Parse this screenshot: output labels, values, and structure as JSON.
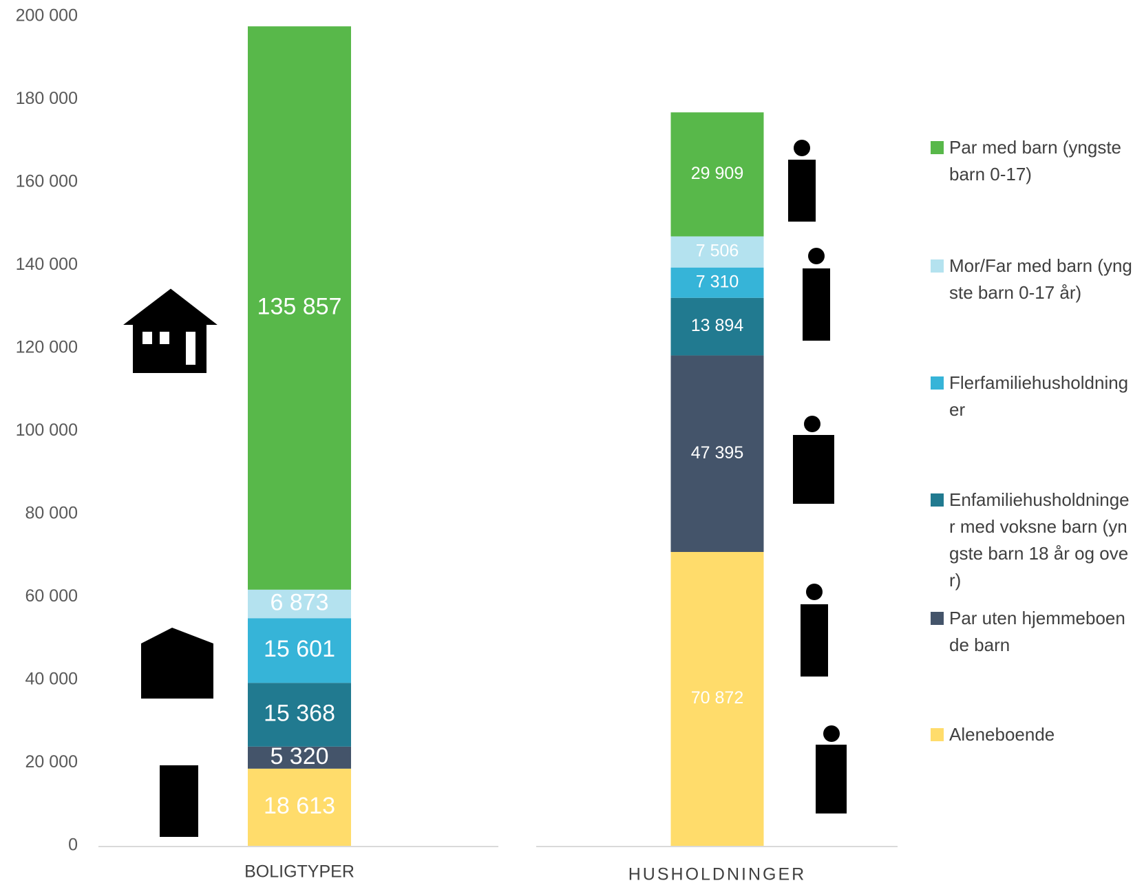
{
  "chart_data": {
    "type": "stacked_bar",
    "categories": [
      "BOLIGTYPER",
      "HUSHOLDNINGER"
    ],
    "series": [
      {
        "name": "Par med barn (yngste barn 0-17)",
        "color": "#58b84a",
        "values": [
          135857,
          29909
        ],
        "value_labels": [
          "135 857",
          "29 909"
        ]
      },
      {
        "name": "Mor/Far med barn (yngste barn 0-17 år)",
        "color": "#b4e2ef",
        "values": [
          6873,
          7506
        ],
        "value_labels": [
          "6 873",
          "7 506"
        ]
      },
      {
        "name": "Flerfamiliehusholdninger",
        "color": "#36b4d8",
        "values": [
          15601,
          7310
        ],
        "value_labels": [
          "15 601",
          "7 310"
        ]
      },
      {
        "name": "Enfamiliehusholdninger med voksne barn (yngste barn 18 år og over)",
        "color": "#217a90",
        "values": [
          15368,
          13894
        ],
        "value_labels": [
          "15 368",
          "13 894"
        ]
      },
      {
        "name": "Par uten hjemmeboende barn",
        "color": "#44546a",
        "values": [
          5320,
          47395
        ],
        "value_labels": [
          "5 320",
          "47 395"
        ]
      },
      {
        "name": "Aleneboende",
        "color": "#ffdc6b",
        "values": [
          18613,
          70872
        ],
        "value_labels": [
          "18 613",
          "70 872"
        ]
      }
    ],
    "ylim": [
      0,
      200000
    ],
    "yticks": [
      0,
      {
        "value": 20000,
        "label": "20 000"
      },
      {
        "value": 40000,
        "label": "40 000"
      },
      {
        "value": 60000,
        "label": "60 000"
      },
      {
        "value": 80000,
        "label": "80 000"
      },
      {
        "value": 100000,
        "label": "100 000"
      },
      {
        "value": 120000,
        "label": "120 000"
      },
      {
        "value": 140000,
        "label": "140 000"
      },
      {
        "value": 160000,
        "label": "160 000"
      },
      {
        "value": 180000,
        "label": "180 000"
      },
      {
        "value": 200000,
        "label": "200 000"
      }
    ],
    "grid": false,
    "legend": "right"
  }
}
